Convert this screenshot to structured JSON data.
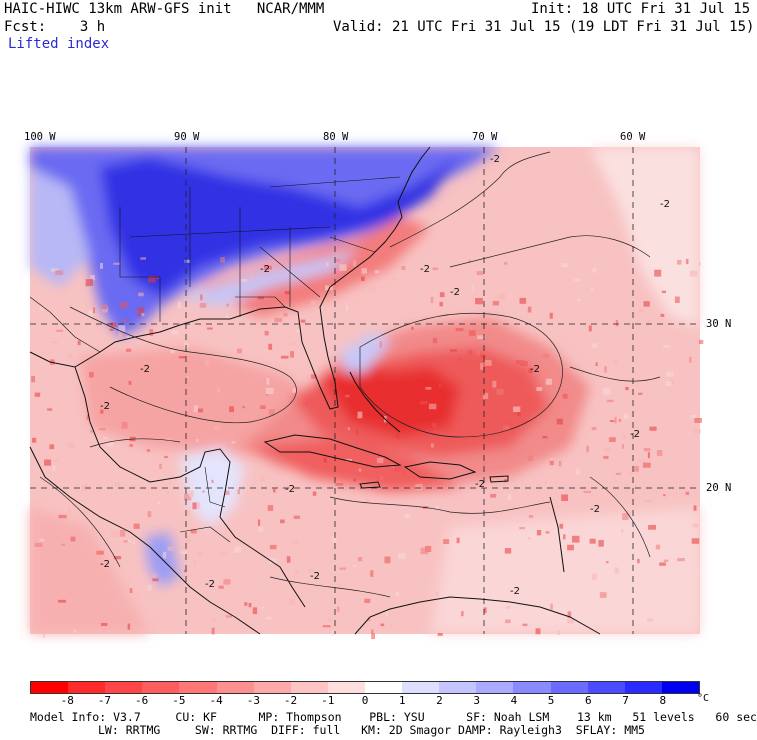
{
  "header": {
    "title_left": "HAIC-HIWC 13km ARW-GFS init   NCAR/MMM",
    "init": "Init: 18 UTC Fri 31 Jul 15",
    "fcst": "Fcst:    3 h",
    "valid": "Valid: 21 UTC Fri 31 Jul 15 (19 LDT Fri 31 Jul 15)",
    "field": "Lifted index"
  },
  "map": {
    "lon_labels": [
      "100 W",
      "90 W",
      "80 W",
      "70 W",
      "60 W"
    ],
    "lat_labels": [
      "30 N",
      "20 N"
    ],
    "contour_labels": [
      "-2",
      "-2",
      "-2",
      "-2",
      "-2",
      "-2",
      "-2",
      "-2",
      "-2",
      "-2",
      "-2",
      "-2",
      "-2",
      "-2",
      "-2",
      "-2"
    ],
    "colors": {
      "deep_blue": "#2121e0",
      "mid_blue": "#5b5bf0",
      "light_blue": "#a9a9f5",
      "pale_blue": "#d8d8fb",
      "pale_red": "#fbd0d0",
      "light_red": "#f7a3a3",
      "mid_red": "#f27070",
      "strong_red": "#ee4343",
      "deep_red": "#e81a1a"
    }
  },
  "colorbar": {
    "labels": [
      "-8",
      "-7",
      "-6",
      "-5",
      "-4",
      "-3",
      "-2",
      "-1",
      "0",
      "1",
      "2",
      "3",
      "4",
      "5",
      "6",
      "7",
      "8"
    ],
    "unit": "°C",
    "colors": [
      "#ff0000",
      "#ff2a2a",
      "#ff4545",
      "#ff5e5e",
      "#ff7777",
      "#ff9090",
      "#ffaaaa",
      "#ffc4c4",
      "#ffdede",
      "#ffffff",
      "#dedeff",
      "#c4c4ff",
      "#aaaaff",
      "#8a8aff",
      "#6b6bff",
      "#4b4bff",
      "#2b2bff",
      "#0000f0"
    ]
  },
  "footer": {
    "line1": "Model Info: V3.7     CU: KF      MP: Thompson    PBL: YSU      SF: Noah LSM    13 km   51 levels   60 sec",
    "line2": "LW: RRTMG     SW: RRTMG  DIFF: full   KM: 2D Smagor DAMP: Rayleigh3  SFLAY: MM5"
  }
}
